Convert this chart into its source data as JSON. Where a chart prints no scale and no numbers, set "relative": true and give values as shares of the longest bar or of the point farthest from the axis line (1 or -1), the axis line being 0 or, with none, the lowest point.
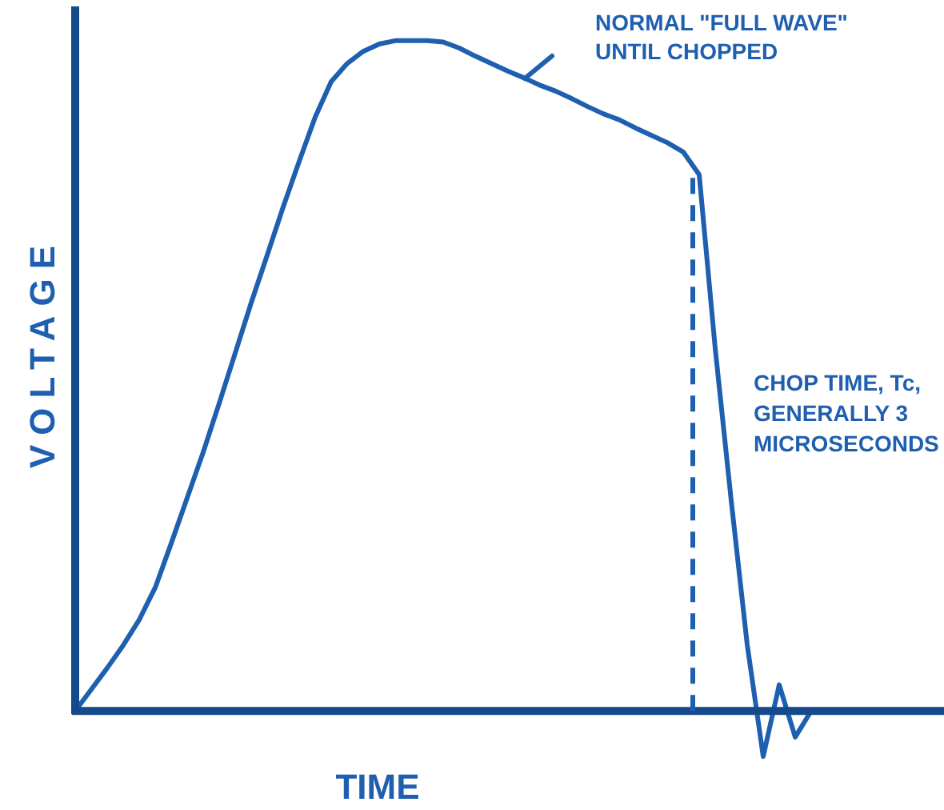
{
  "chart_data": {
    "type": "line",
    "relative": true,
    "xlabel": "TIME",
    "ylabel": "VOLTAGE",
    "line_style": "solid",
    "categories": [
      null,
      null,
      null,
      null,
      null,
      null,
      null,
      null,
      null,
      null,
      null,
      null,
      null,
      null,
      null,
      null,
      null,
      null,
      null,
      null,
      null,
      null,
      null,
      null,
      null,
      null,
      null,
      null,
      null,
      null,
      null,
      null,
      null,
      null,
      null,
      null,
      null,
      null,
      null,
      null,
      null,
      null,
      null,
      null,
      null,
      null,
      null
    ],
    "series": [
      {
        "color": "#1f5fb0",
        "values": [
          0,
          0.032,
          0.064,
          0.098,
          0.136,
          0.184,
          0.25,
          0.318,
          0.386,
          0.459,
          0.534,
          0.609,
          0.68,
          0.752,
          0.82,
          0.886,
          0.939,
          0.966,
          0.984,
          0.995,
          1,
          1,
          1,
          0.998,
          0.989,
          0.977,
          0.966,
          0.955,
          0.945,
          0.934,
          0.925,
          0.914,
          0.902,
          0.891,
          0.882,
          0.87,
          0.859,
          0.848,
          0.834,
          0.8,
          0.541,
          0.314,
          0.099,
          -0.068,
          0.039,
          -0.039,
          0
        ]
      }
    ],
    "ref_lines": [
      {
        "axis": "y",
        "value": 0,
        "color": "#144a8c",
        "line_style": "solid"
      },
      {
        "axis": "x",
        "color": "#1f5fb0",
        "line_style": "dashed",
        "label": "CHOP TIME, Tc,\nGENERALLY 3\nMICROSECONDS"
      }
    ],
    "annotations": [
      "NORMAL \"FULL WAVE\"\nUNTIL CHOPPED"
    ]
  }
}
